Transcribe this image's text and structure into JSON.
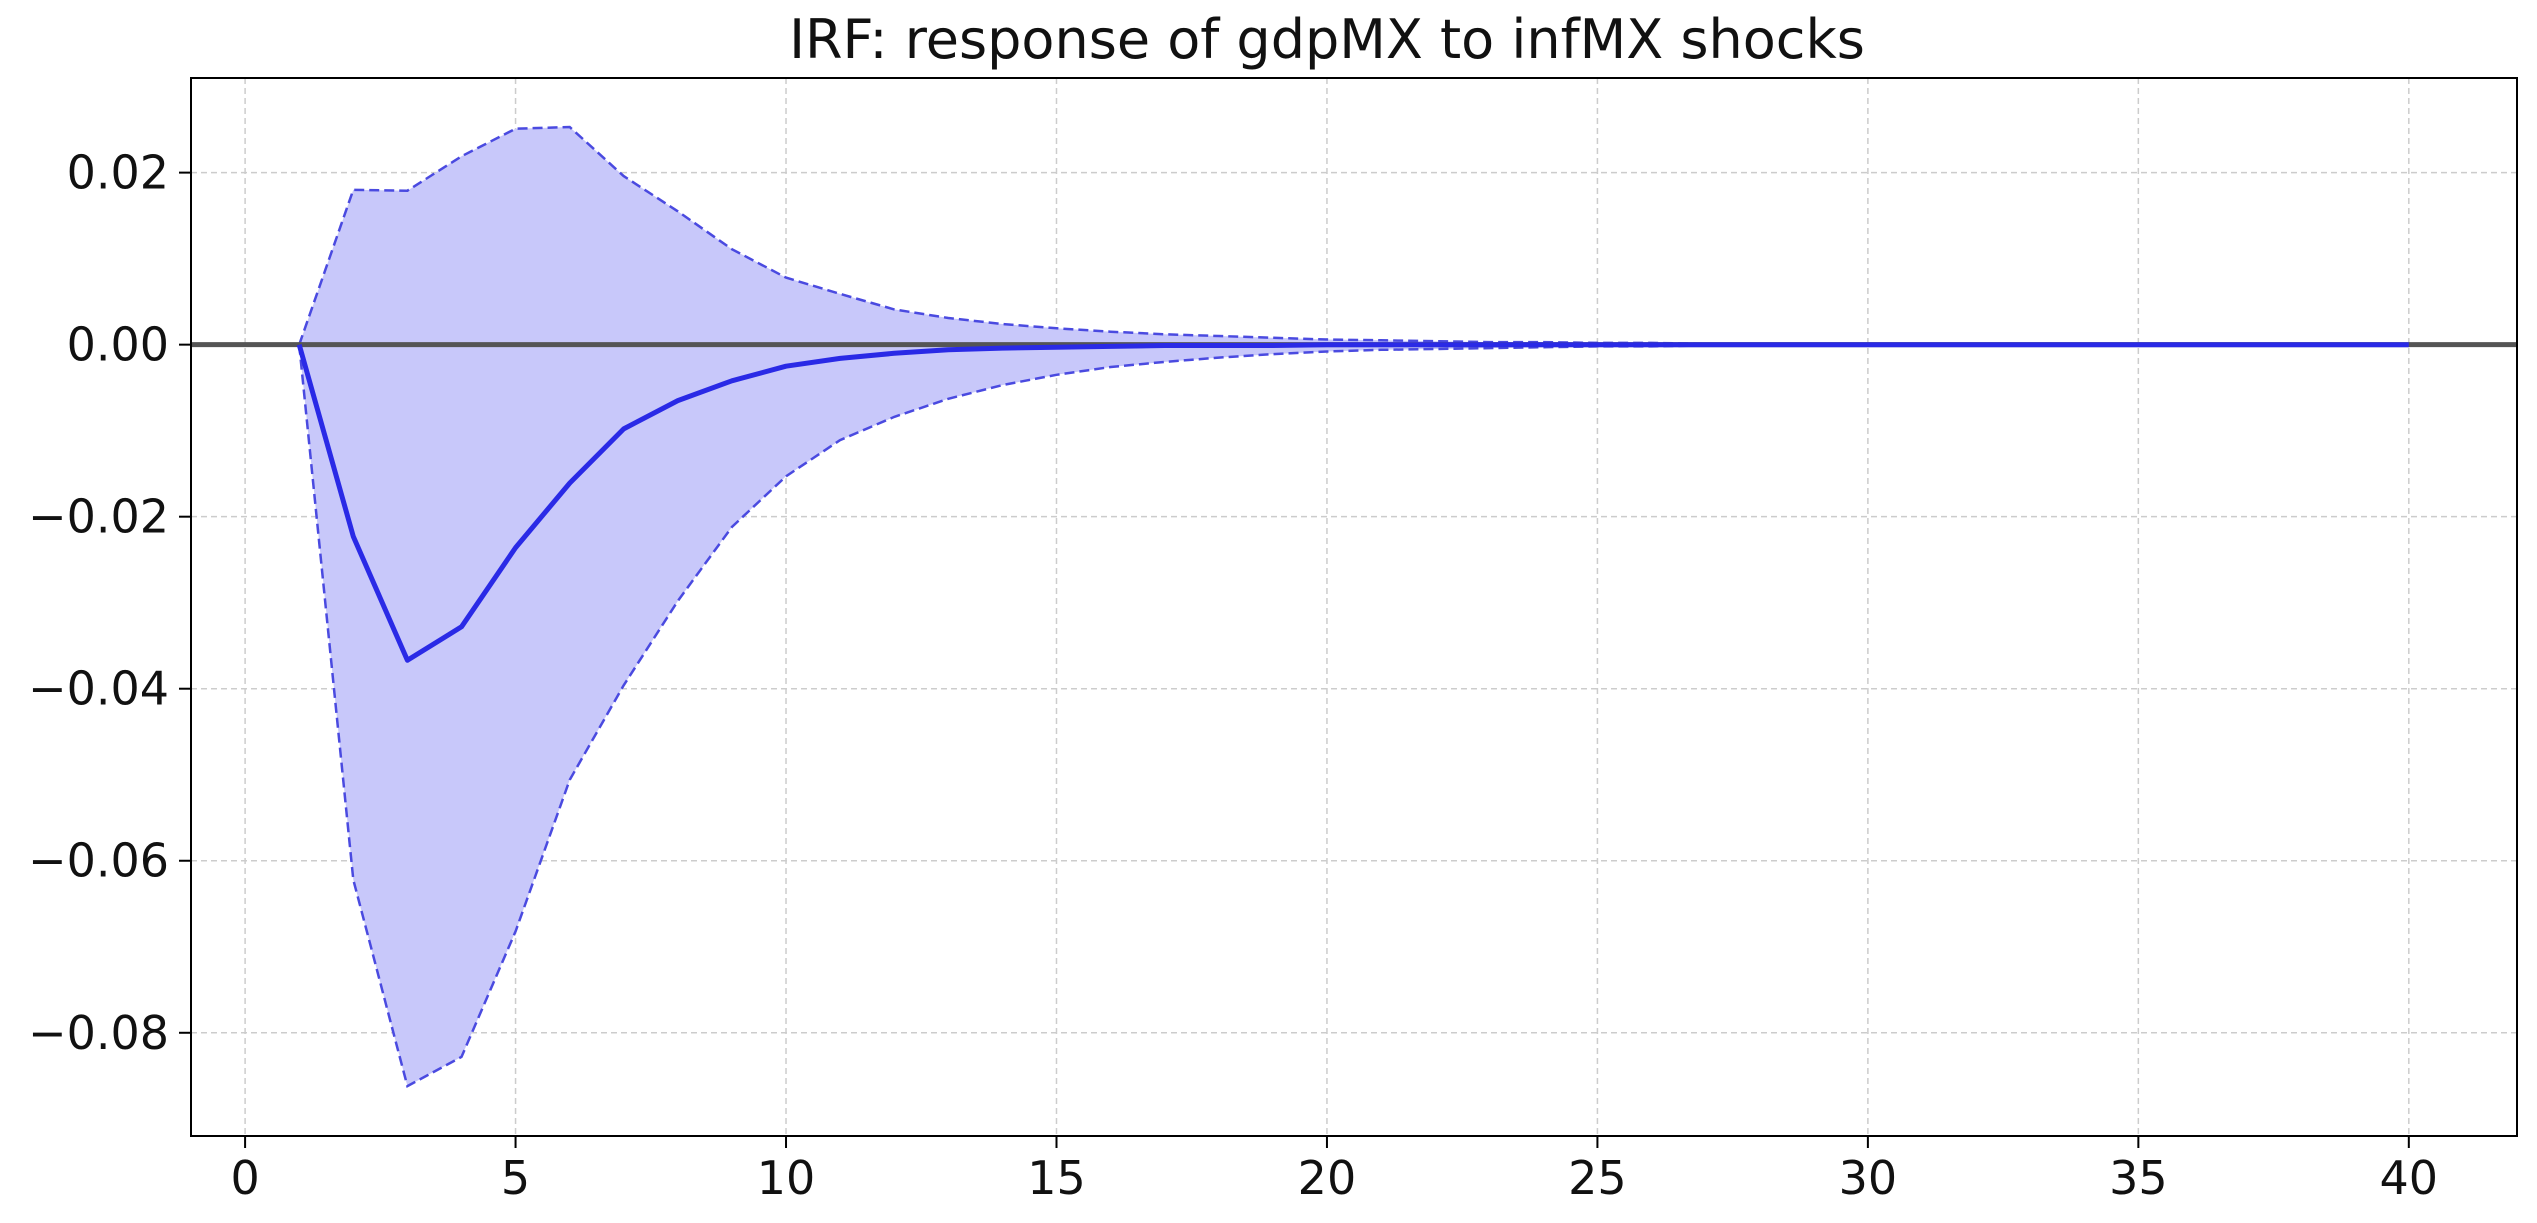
{
  "chart_data": {
    "type": "line",
    "title": "IRF: response of gdpMX to infMX shocks",
    "xlabel": "",
    "ylabel": "",
    "xlim": [
      -1,
      42
    ],
    "ylim": [
      -0.092,
      0.031
    ],
    "grid": true,
    "legend": "none",
    "x_ticks": [
      0,
      5,
      10,
      15,
      20,
      25,
      30,
      35,
      40
    ],
    "x_tick_labels": [
      "0",
      "5",
      "10",
      "15",
      "20",
      "25",
      "30",
      "35",
      "40"
    ],
    "y_ticks": [
      0.02,
      0.0,
      -0.02,
      -0.04,
      -0.06,
      -0.08
    ],
    "y_tick_labels": [
      "0.02",
      "0.00",
      "−0.02",
      "−0.04",
      "−0.06",
      "−0.08"
    ],
    "zero_line": 0,
    "x": [
      1,
      2,
      3,
      4,
      5,
      6,
      7,
      8,
      9,
      10,
      11,
      12,
      13,
      14,
      15,
      16,
      17,
      18,
      19,
      20,
      21,
      22,
      23,
      24,
      25,
      26,
      27,
      28,
      29,
      30,
      31,
      32,
      33,
      34,
      35,
      36,
      37,
      38,
      39,
      40
    ],
    "series": [
      {
        "role": "point-estimate",
        "values": [
          0.0,
          -0.0223,
          -0.0367,
          -0.0328,
          -0.0236,
          -0.0161,
          -0.0098,
          -0.0065,
          -0.0042,
          -0.0025,
          -0.0016,
          -0.001,
          -0.0006,
          -0.0004,
          -0.0003,
          -0.0002,
          -0.0001,
          -0.0001,
          -0.0001,
          0,
          0,
          0,
          0,
          0,
          0,
          0,
          0,
          0,
          0,
          0,
          0,
          0,
          0,
          0,
          0,
          0,
          0,
          0,
          0,
          0
        ]
      },
      {
        "role": "upper-band",
        "values": [
          0.0,
          0.018,
          0.0179,
          0.0219,
          0.0251,
          0.0253,
          0.0196,
          0.0155,
          0.0111,
          0.0078,
          0.0059,
          0.0041,
          0.0031,
          0.0024,
          0.0019,
          0.0015,
          0.0012,
          0.001,
          0.0008,
          0.0006,
          0.0005,
          0.0004,
          0.0003,
          0.0003,
          0.0002,
          0.0002,
          0.0001,
          0.0001,
          0.0001,
          0.0001,
          0,
          0,
          0,
          0,
          0,
          0,
          0,
          0,
          0,
          0
        ]
      },
      {
        "role": "lower-band",
        "values": [
          0.0,
          -0.0622,
          -0.0862,
          -0.0828,
          -0.0682,
          -0.0506,
          -0.0396,
          -0.0298,
          -0.0212,
          -0.0153,
          -0.0111,
          -0.0084,
          -0.0063,
          -0.0047,
          -0.0035,
          -0.0026,
          -0.002,
          -0.0015,
          -0.0011,
          -0.0008,
          -0.0006,
          -0.0005,
          -0.0004,
          -0.0003,
          -0.0002,
          -0.0002,
          -0.0001,
          -0.0001,
          -0.0001,
          -0.0001,
          0,
          0,
          0,
          0,
          0,
          0,
          0,
          0,
          0,
          0
        ]
      }
    ],
    "colors": {
      "line": "#2a2ae6",
      "band_fill": "#c8c8fa",
      "band_edge": "#4a4ae0",
      "zero_line": "#555555",
      "grid": "#cccccc",
      "axes": "#000000"
    }
  }
}
